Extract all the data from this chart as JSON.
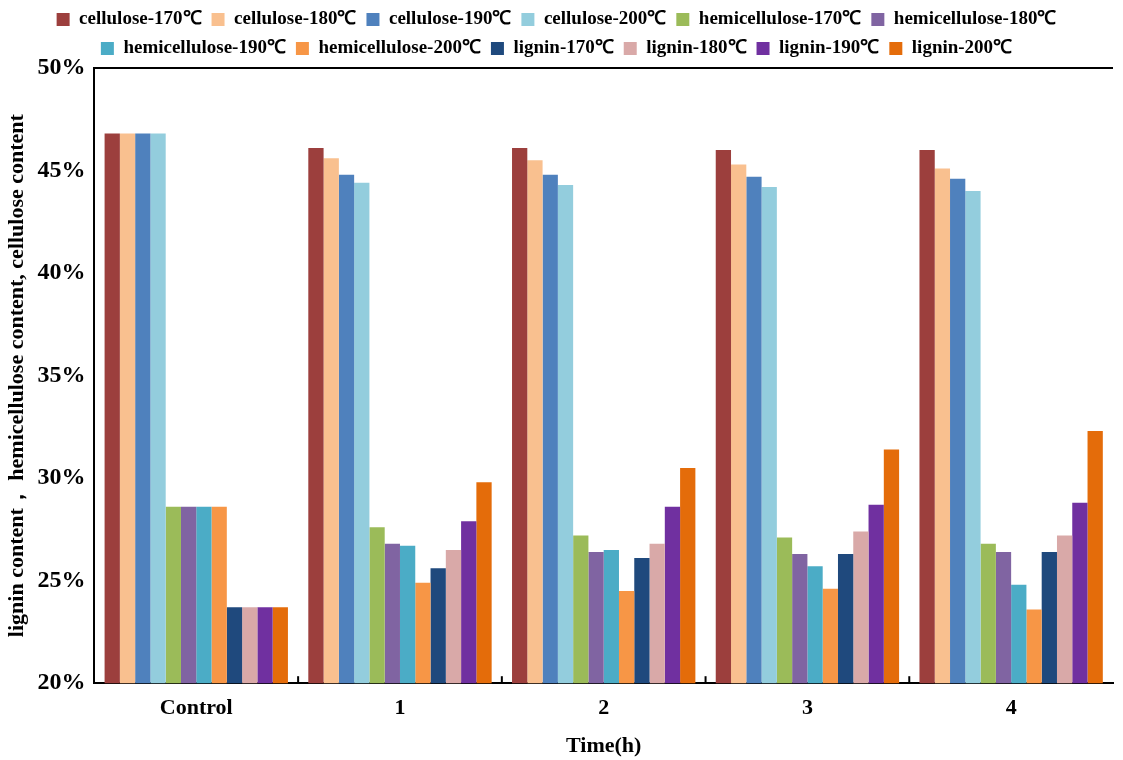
{
  "chart_data": {
    "type": "bar",
    "xlabel": "Time(h)",
    "ylabel": "lignin content， hemicellulose content, cellulose content",
    "categories": [
      "Control",
      "1",
      "2",
      "3",
      "4"
    ],
    "series": [
      {
        "name": "cellulose-170℃",
        "color": "#9c3f3d",
        "values": [
          46.8,
          46.1,
          46.1,
          46.0,
          46.0
        ]
      },
      {
        "name": "cellulose-180℃",
        "color": "#f9c08f",
        "values": [
          46.8,
          45.6,
          45.5,
          45.3,
          45.1
        ]
      },
      {
        "name": "cellulose-190℃",
        "color": "#4f81bd",
        "values": [
          46.8,
          44.8,
          44.8,
          44.7,
          44.6
        ]
      },
      {
        "name": "cellulose-200℃",
        "color": "#93cddd",
        "values": [
          46.8,
          44.4,
          44.3,
          44.2,
          44.0
        ]
      },
      {
        "name": "hemicellulose-170℃",
        "color": "#9bbb59",
        "values": [
          28.6,
          27.6,
          27.2,
          27.1,
          26.8
        ]
      },
      {
        "name": "hemicellulose-180℃",
        "color": "#8064a2",
        "values": [
          28.6,
          26.8,
          26.4,
          26.3,
          26.4
        ]
      },
      {
        "name": "hemicellulose-190℃",
        "color": "#4bacc6",
        "values": [
          28.6,
          26.7,
          26.5,
          25.7,
          24.8
        ]
      },
      {
        "name": "hemicellulose-200℃",
        "color": "#f79646",
        "values": [
          28.6,
          24.9,
          24.5,
          24.6,
          23.6
        ]
      },
      {
        "name": "lignin-170℃",
        "color": "#1f497d",
        "values": [
          23.7,
          25.6,
          26.1,
          26.3,
          26.4
        ]
      },
      {
        "name": "lignin-180℃",
        "color": "#d9a9a8",
        "values": [
          23.7,
          26.5,
          26.8,
          27.4,
          27.2
        ]
      },
      {
        "name": "lignin-190℃",
        "color": "#7030a0",
        "values": [
          23.7,
          27.9,
          28.6,
          28.7,
          28.8
        ]
      },
      {
        "name": "lignin-200℃",
        "color": "#e46c0a",
        "values": [
          23.7,
          29.8,
          30.5,
          31.4,
          32.3
        ]
      }
    ],
    "ylim": [
      20,
      50
    ],
    "yticks": [
      {
        "value": 20,
        "label": "20%"
      },
      {
        "value": 25,
        "label": "25%"
      },
      {
        "value": 30,
        "label": "30%"
      },
      {
        "value": 35,
        "label": "35%"
      },
      {
        "value": 40,
        "label": "40%"
      },
      {
        "value": 45,
        "label": "45%"
      },
      {
        "value": 50,
        "label": "50%"
      }
    ],
    "grid": false,
    "legend": "top"
  }
}
